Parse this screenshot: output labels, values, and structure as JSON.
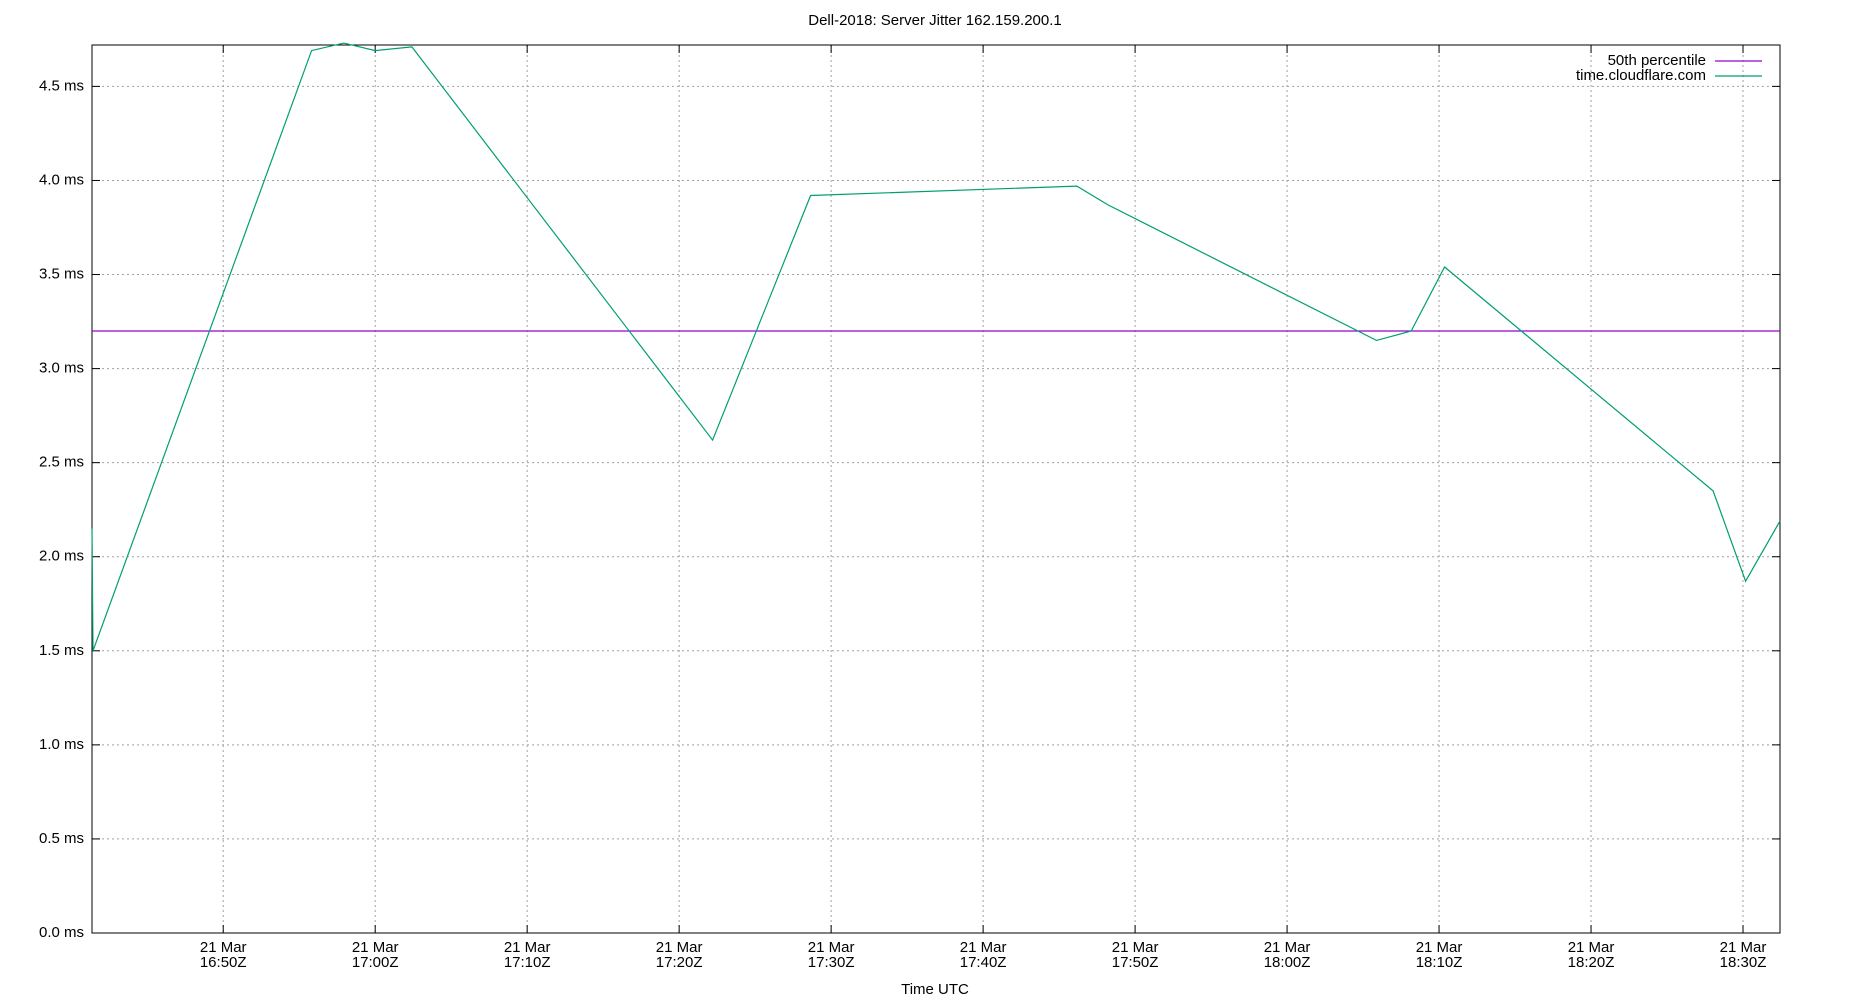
{
  "chart_data": {
    "type": "line",
    "title": "Dell-2018: Server Jitter 162.159.200.1",
    "xlabel": "Time UTC",
    "xlim": [
      "16:41:22",
      "18:32:26"
    ],
    "xticks": [
      {
        "value": "16:50",
        "label": [
          "21 Mar",
          "16:50Z"
        ]
      },
      {
        "value": "17:00",
        "label": [
          "21 Mar",
          "17:00Z"
        ]
      },
      {
        "value": "17:10",
        "label": [
          "21 Mar",
          "17:10Z"
        ]
      },
      {
        "value": "17:20",
        "label": [
          "21 Mar",
          "17:20Z"
        ]
      },
      {
        "value": "17:30",
        "label": [
          "21 Mar",
          "17:30Z"
        ]
      },
      {
        "value": "17:40",
        "label": [
          "21 Mar",
          "17:40Z"
        ]
      },
      {
        "value": "17:50",
        "label": [
          "21 Mar",
          "17:50Z"
        ]
      },
      {
        "value": "18:00",
        "label": [
          "21 Mar",
          "18:00Z"
        ]
      },
      {
        "value": "18:10",
        "label": [
          "21 Mar",
          "18:10Z"
        ]
      },
      {
        "value": "18:20",
        "label": [
          "21 Mar",
          "18:20Z"
        ]
      },
      {
        "value": "18:30",
        "label": [
          "21 Mar",
          "18:30Z"
        ]
      }
    ],
    "ylim": [
      0,
      4.72
    ],
    "yticks": [
      {
        "value": 0,
        "label": "0.0 ms"
      },
      {
        "value": 0.5,
        "label": "0.5 ms"
      },
      {
        "value": 1,
        "label": "1.0 ms"
      },
      {
        "value": 1.5,
        "label": "1.5 ms"
      },
      {
        "value": 2,
        "label": "2.0 ms"
      },
      {
        "value": 2.5,
        "label": "2.5 ms"
      },
      {
        "value": 3,
        "label": "3.0 ms"
      },
      {
        "value": 3.5,
        "label": "3.5 ms"
      },
      {
        "value": 4,
        "label": "4.0 ms"
      },
      {
        "value": 4.5,
        "label": "4.5 ms"
      }
    ],
    "grid": true,
    "legend": "top-right",
    "series": [
      {
        "name": "50th percentile",
        "color": "#9400d3",
        "x": [
          "16:41:22",
          "18:32:26"
        ],
        "values": [
          3.2,
          3.2
        ]
      },
      {
        "name": "time.cloudflare.com",
        "color": "#009e73",
        "x": [
          "16:41:22",
          "16:41:26",
          "16:55:49",
          "16:57:56",
          "17:00:00",
          "17:02:25",
          "17:22:12",
          "17:28:39",
          "17:46:10",
          "17:48:13",
          "18:05:53",
          "18:08:10",
          "18:10:22",
          "18:28:02",
          "18:30:10",
          "18:32:26"
        ],
        "values": [
          2.15,
          1.5,
          4.69,
          4.73,
          4.69,
          4.71,
          2.62,
          3.92,
          3.97,
          3.87,
          3.15,
          3.2,
          3.54,
          2.35,
          1.87,
          2.19
        ]
      }
    ]
  }
}
